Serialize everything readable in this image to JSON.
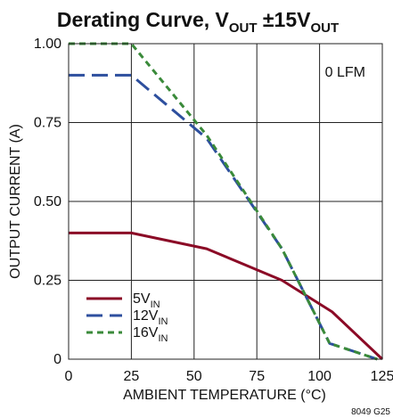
{
  "chart_data": {
    "type": "line",
    "title": {
      "main": "Derating Curve, V",
      "sub1": "OUT",
      "middle": " ±15V",
      "sub2": "OUT"
    },
    "xlabel": "AMBIENT TEMPERATURE (°C)",
    "ylabel": "OUTPUT CURRENT (A)",
    "xlim": [
      0,
      125
    ],
    "ylim": [
      0,
      1.0
    ],
    "x_ticks": [
      0,
      25,
      50,
      75,
      100,
      125
    ],
    "x_tick_labels": [
      "0",
      "25",
      "50",
      "75",
      "100",
      "125"
    ],
    "y_ticks": [
      0,
      0.25,
      0.5,
      0.75,
      1.0
    ],
    "y_tick_labels": [
      "0",
      "0.25",
      "0.50",
      "0.75",
      "1.00"
    ],
    "grid": true,
    "annotation": "0 LFM",
    "figure_id": "8049 G25",
    "legend_position": "bottom-left",
    "series": [
      {
        "name": "5V",
        "name_sub": "IN",
        "color": "#8b0a26",
        "dash": "solid",
        "x": [
          0,
          25,
          55,
          85,
          105,
          125
        ],
        "y": [
          0.4,
          0.4,
          0.35,
          0.25,
          0.15,
          0.0
        ]
      },
      {
        "name": "12V",
        "name_sub": "IN",
        "color": "#2d4f9e",
        "dash": "long-dash",
        "x": [
          0,
          25,
          55,
          85,
          104,
          123
        ],
        "y": [
          0.9,
          0.9,
          0.7,
          0.35,
          0.05,
          0.0
        ]
      },
      {
        "name": "16V",
        "name_sub": "IN",
        "color": "#3a8a3a",
        "dash": "short-dash",
        "x": [
          0,
          25,
          55,
          85,
          104,
          123
        ],
        "y": [
          1.0,
          1.0,
          0.71,
          0.35,
          0.05,
          0.0
        ]
      }
    ]
  }
}
